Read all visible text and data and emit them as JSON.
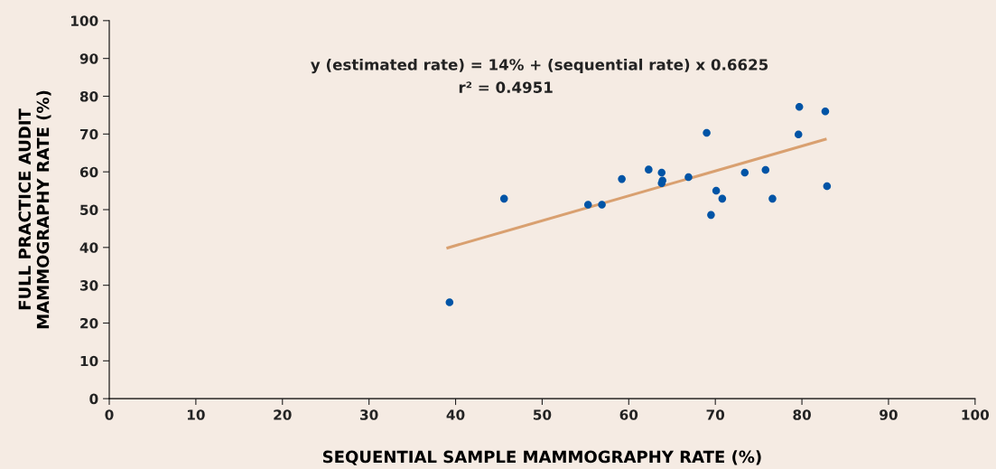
{
  "chart_data": {
    "type": "scatter",
    "xlabel": "SEQUENTIAL SAMPLE MAMMOGRAPHY RATE (%)",
    "ylabel": "FULL PRACTICE AUDIT\nMAMMOGRAPHY RATE (%)",
    "xlim": [
      0,
      100
    ],
    "ylim": [
      0,
      100
    ],
    "xticks": [
      0,
      10,
      20,
      30,
      40,
      50,
      60,
      70,
      80,
      90,
      100
    ],
    "yticks": [
      0,
      10,
      20,
      30,
      40,
      50,
      60,
      70,
      80,
      90,
      100
    ],
    "grid": false,
    "annotations": [
      "y (estimated rate) = 14% + (sequential rate) x 0.6625",
      "r² = 0.4951"
    ],
    "series": [
      {
        "marker": "circle",
        "color": "#0054a6",
        "x": [
          39.3,
          45.6,
          55.3,
          56.9,
          59.2,
          62.3,
          63.8,
          63.9,
          63.8,
          66.9,
          69.0,
          69.5,
          70.1,
          70.8,
          73.4,
          75.8,
          76.6,
          79.6,
          79.7,
          82.7,
          82.9
        ],
        "values": [
          25.5,
          52.9,
          51.3,
          51.3,
          58.1,
          60.6,
          59.8,
          57.7,
          57.0,
          58.6,
          70.3,
          48.6,
          55.0,
          52.9,
          59.8,
          60.5,
          52.9,
          69.9,
          77.2,
          76.0,
          56.2
        ]
      },
      {
        "type": "line",
        "marker": "none",
        "color": "#d9a070",
        "x": [
          39.1,
          82.7
        ],
        "values": [
          39.9,
          68.6
        ]
      }
    ]
  }
}
